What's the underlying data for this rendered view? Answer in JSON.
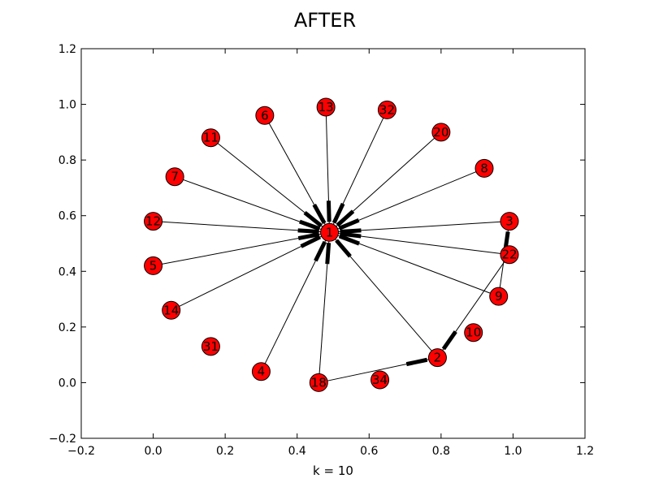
{
  "chart_data": {
    "type": "scatter",
    "title": "AFTER",
    "xlabel": "k = 10",
    "ylabel": "",
    "xlim": [
      -0.2,
      1.2
    ],
    "ylim": [
      -0.2,
      1.2
    ],
    "xticks": [
      "−0.2",
      "0.0",
      "0.2",
      "0.4",
      "0.6",
      "0.8",
      "1.0",
      "1.2"
    ],
    "yticks": [
      "−0.2",
      "0.0",
      "0.2",
      "0.4",
      "0.6",
      "0.8",
      "1.0",
      "1.2"
    ],
    "grid": false,
    "node_color": "#ff0000",
    "edge_color": "#000000",
    "nodes": [
      {
        "id": "1",
        "x": 0.49,
        "y": 0.54
      },
      {
        "id": "13",
        "x": 0.48,
        "y": 0.99
      },
      {
        "id": "32",
        "x": 0.65,
        "y": 0.98
      },
      {
        "id": "6",
        "x": 0.31,
        "y": 0.96
      },
      {
        "id": "20",
        "x": 0.8,
        "y": 0.9
      },
      {
        "id": "11",
        "x": 0.16,
        "y": 0.88
      },
      {
        "id": "8",
        "x": 0.92,
        "y": 0.77
      },
      {
        "id": "7",
        "x": 0.06,
        "y": 0.74
      },
      {
        "id": "12",
        "x": 0.0,
        "y": 0.58
      },
      {
        "id": "3",
        "x": 0.99,
        "y": 0.58
      },
      {
        "id": "22",
        "x": 0.99,
        "y": 0.46
      },
      {
        "id": "5",
        "x": 0.0,
        "y": 0.42
      },
      {
        "id": "9",
        "x": 0.96,
        "y": 0.31
      },
      {
        "id": "14",
        "x": 0.05,
        "y": 0.26
      },
      {
        "id": "10",
        "x": 0.89,
        "y": 0.18
      },
      {
        "id": "31",
        "x": 0.16,
        "y": 0.13
      },
      {
        "id": "2",
        "x": 0.79,
        "y": 0.09
      },
      {
        "id": "4",
        "x": 0.3,
        "y": 0.04
      },
      {
        "id": "34",
        "x": 0.63,
        "y": 0.01
      },
      {
        "id": "18",
        "x": 0.46,
        "y": 0.0
      }
    ],
    "edges": [
      {
        "source": "13",
        "target": "1"
      },
      {
        "source": "32",
        "target": "1"
      },
      {
        "source": "6",
        "target": "1"
      },
      {
        "source": "20",
        "target": "1"
      },
      {
        "source": "11",
        "target": "1"
      },
      {
        "source": "8",
        "target": "1"
      },
      {
        "source": "7",
        "target": "1"
      },
      {
        "source": "12",
        "target": "1"
      },
      {
        "source": "3",
        "target": "1"
      },
      {
        "source": "22",
        "target": "1"
      },
      {
        "source": "5",
        "target": "1"
      },
      {
        "source": "9",
        "target": "1"
      },
      {
        "source": "14",
        "target": "1"
      },
      {
        "source": "2",
        "target": "1"
      },
      {
        "source": "4",
        "target": "1"
      },
      {
        "source": "18",
        "target": "1"
      },
      {
        "source": "18",
        "target": "2"
      },
      {
        "source": "22",
        "target": "2"
      },
      {
        "source": "9",
        "target": "3"
      }
    ]
  }
}
